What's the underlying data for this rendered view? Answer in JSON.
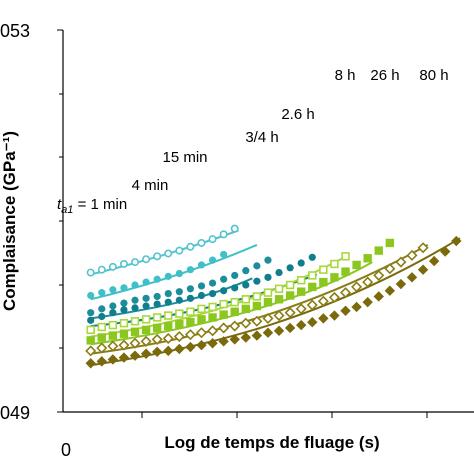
{
  "chart_data": {
    "type": "scatter",
    "xlabel": "Log de temps de fluage (s)",
    "ylabel": "Complaisance (GPa⁻¹)",
    "y_ticks": [
      {
        "value": 0.049,
        "label": "049"
      },
      {
        "value": 0.053,
        "label": "053"
      }
    ],
    "x_ticks": [
      {
        "value": 0,
        "label": "0"
      }
    ],
    "x_range": [
      0,
      4.3
    ],
    "y_range": [
      0.049,
      0.053
    ],
    "grid": false,
    "legend": "none",
    "series": [
      {
        "name": "t_a1 = 1 min",
        "label_prefix": "t",
        "label_sub": "a1",
        "label_suffix": " = 1 min",
        "color": "#55c3cf",
        "marker": "circle-open",
        "x": [
          0.3,
          0.42,
          0.54,
          0.66,
          0.78,
          0.9,
          1.02,
          1.14,
          1.26,
          1.38,
          1.5,
          1.62,
          1.74,
          1.86
        ],
        "y": [
          0.05046,
          0.05049,
          0.05052,
          0.05055,
          0.05057,
          0.0506,
          0.05063,
          0.05066,
          0.05069,
          0.05073,
          0.05077,
          0.05081,
          0.05086,
          0.05092
        ],
        "fit": [
          [
            0.3,
            0.05044
          ],
          [
            0.8,
            0.05056
          ],
          [
            1.3,
            0.05069
          ],
          [
            1.9,
            0.0509
          ]
        ]
      },
      {
        "name": "4 min",
        "color": "#3fc0c9",
        "marker": "circle",
        "x": [
          0.3,
          0.42,
          0.54,
          0.66,
          0.78,
          0.9,
          1.02,
          1.14,
          1.26,
          1.38,
          1.5,
          1.62,
          1.74
        ],
        "y": [
          0.05022,
          0.05025,
          0.05028,
          0.0503,
          0.05033,
          0.05036,
          0.05039,
          0.05042,
          0.05045,
          0.05049,
          0.05054,
          0.05059,
          0.05065
        ],
        "fit": [
          [
            0.3,
            0.05018
          ],
          [
            0.9,
            0.05032
          ],
          [
            1.5,
            0.0505
          ],
          [
            2.1,
            0.05075
          ]
        ]
      },
      {
        "name": "15 min",
        "color": "#1d8d9b",
        "marker": "circle",
        "x": [
          0.3,
          0.42,
          0.54,
          0.66,
          0.78,
          0.9,
          1.02,
          1.14,
          1.26,
          1.38,
          1.5,
          1.62,
          1.74,
          1.86,
          1.98,
          2.1,
          2.22
        ],
        "y": [
          0.05004,
          0.05008,
          0.05011,
          0.05014,
          0.05017,
          0.05019,
          0.05021,
          0.05024,
          0.05026,
          0.05029,
          0.05032,
          0.05035,
          0.05039,
          0.05043,
          0.05048,
          0.05053,
          0.05059
        ],
        "fit": [
          [
            0.3,
            0.04998
          ],
          [
            1,
            0.05008
          ],
          [
            1.6,
            0.0502
          ],
          [
            2.05,
            0.0504
          ]
        ]
      },
      {
        "name": "3/4 h",
        "color": "#0f7f8e",
        "marker": "circle",
        "x": [
          0.3,
          0.42,
          0.54,
          0.66,
          0.78,
          0.9,
          1.02,
          1.14,
          1.26,
          1.38,
          1.5,
          1.62,
          1.74,
          1.86,
          1.98,
          2.1,
          2.22,
          2.34,
          2.46,
          2.58,
          2.7
        ],
        "y": [
          0.04996,
          0.05,
          0.05004,
          0.05007,
          0.05009,
          0.05011,
          0.05013,
          0.05015,
          0.05017,
          0.05019,
          0.05022,
          0.05024,
          0.05027,
          0.0503,
          0.05033,
          0.05037,
          0.05041,
          0.05046,
          0.05051,
          0.05056,
          0.05062
        ],
        "fit": [
          [
            0.3,
            0.0499
          ],
          [
            1.1,
            0.04997
          ],
          [
            1.9,
            0.05013
          ],
          [
            2.75,
            0.05044
          ]
        ]
      },
      {
        "name": "2.6 h",
        "color": "#a9d83a",
        "marker": "square-open",
        "x": [
          0.3,
          0.42,
          0.54,
          0.66,
          0.78,
          0.9,
          1.02,
          1.14,
          1.26,
          1.38,
          1.5,
          1.62,
          1.74,
          1.86,
          1.98,
          2.1,
          2.22,
          2.34,
          2.46,
          2.58,
          2.7,
          2.82,
          2.94,
          3.06
        ],
        "y": [
          0.04986,
          0.04989,
          0.04991,
          0.04993,
          0.04995,
          0.04997,
          0.04999,
          0.05001,
          0.05003,
          0.05005,
          0.05008,
          0.0501,
          0.05013,
          0.05015,
          0.05018,
          0.05021,
          0.05025,
          0.05029,
          0.05033,
          0.05038,
          0.05043,
          0.05049,
          0.05055,
          0.05063
        ],
        "fit": [
          [
            0.3,
            0.04979
          ],
          [
            1.2,
            0.04992
          ],
          [
            2.1,
            0.05013
          ],
          [
            3.05,
            0.05062
          ]
        ]
      },
      {
        "name": "8 h",
        "color": "#8cc720",
        "marker": "square",
        "x": [
          0.3,
          0.42,
          0.54,
          0.66,
          0.78,
          0.9,
          1.02,
          1.14,
          1.26,
          1.38,
          1.5,
          1.62,
          1.74,
          1.86,
          1.98,
          2.1,
          2.22,
          2.34,
          2.46,
          2.58,
          2.7,
          2.82,
          2.94,
          3.06,
          3.18,
          3.3,
          3.42,
          3.54
        ],
        "y": [
          0.04975,
          0.04978,
          0.0498,
          0.04982,
          0.04984,
          0.04986,
          0.04988,
          0.0499,
          0.04992,
          0.04994,
          0.04997,
          0.04999,
          0.05002,
          0.05005,
          0.05008,
          0.05011,
          0.05015,
          0.05018,
          0.05022,
          0.05026,
          0.05031,
          0.05036,
          0.05041,
          0.05047,
          0.05054,
          0.05061,
          0.05069,
          0.05077
        ],
        "fit": [
          [
            0.3,
            0.04971
          ],
          [
            1.4,
            0.04986
          ],
          [
            2.6,
            0.05015
          ],
          [
            3.35,
            0.05057
          ]
        ]
      },
      {
        "name": "26 h",
        "color": "#8a7d16",
        "marker": "diamond-open",
        "x": [
          0.3,
          0.42,
          0.54,
          0.66,
          0.78,
          0.9,
          1.02,
          1.14,
          1.26,
          1.38,
          1.5,
          1.62,
          1.74,
          1.86,
          1.98,
          2.1,
          2.22,
          2.34,
          2.46,
          2.58,
          2.7,
          2.82,
          2.94,
          3.06,
          3.18,
          3.3,
          3.42,
          3.54,
          3.66,
          3.78,
          3.9
        ],
        "y": [
          0.04964,
          0.04967,
          0.04969,
          0.0497,
          0.04972,
          0.04974,
          0.04976,
          0.04977,
          0.04979,
          0.04981,
          0.04983,
          0.04985,
          0.04988,
          0.0499,
          0.04993,
          0.04995,
          0.04998,
          0.05001,
          0.05004,
          0.05008,
          0.05012,
          0.05016,
          0.0502,
          0.05025,
          0.05031,
          0.05036,
          0.05043,
          0.0505,
          0.05057,
          0.05064,
          0.05072
        ],
        "fit": [
          [
            0.3,
            0.04961
          ],
          [
            1.5,
            0.04976
          ],
          [
            2.7,
            0.05008
          ],
          [
            3.95,
            0.05075
          ]
        ]
      },
      {
        "name": "80 h",
        "color": "#7a6a0c",
        "marker": "diamond",
        "x": [
          0.3,
          0.42,
          0.54,
          0.66,
          0.78,
          0.9,
          1.02,
          1.14,
          1.26,
          1.38,
          1.5,
          1.62,
          1.74,
          1.86,
          1.98,
          2.1,
          2.22,
          2.34,
          2.46,
          2.58,
          2.7,
          2.82,
          2.94,
          3.06,
          3.18,
          3.3,
          3.42,
          3.54,
          3.66,
          3.78,
          3.9,
          4.02,
          4.14,
          4.26
        ],
        "y": [
          0.04951,
          0.04953,
          0.04955,
          0.04957,
          0.04959,
          0.04961,
          0.04963,
          0.04964,
          0.04966,
          0.04968,
          0.0497,
          0.04972,
          0.04974,
          0.04976,
          0.04978,
          0.0498,
          0.04983,
          0.04985,
          0.04988,
          0.04991,
          0.04994,
          0.04998,
          0.05001,
          0.05006,
          0.0501,
          0.05015,
          0.05021,
          0.05027,
          0.05034,
          0.05041,
          0.05049,
          0.05058,
          0.05068,
          0.05079
        ],
        "fit": [
          [
            0.3,
            0.04949
          ],
          [
            1.6,
            0.04968
          ],
          [
            2.9,
            0.05
          ],
          [
            4.3,
            0.05082
          ]
        ]
      }
    ]
  }
}
